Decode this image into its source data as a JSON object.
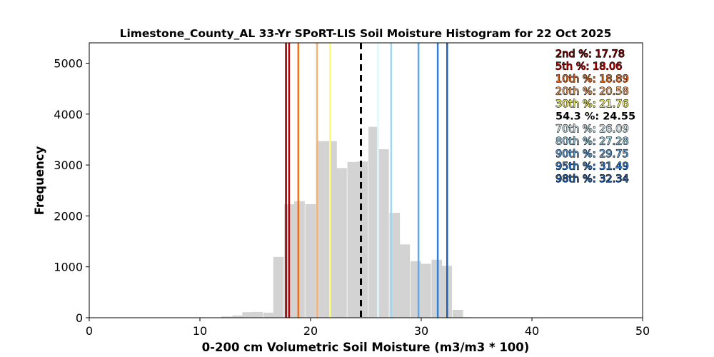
{
  "chart_data": {
    "type": "bar",
    "title": "Limestone_County_AL 33-Yr SPoRT-LIS Soil Moisture Histogram for 22 Oct 2025",
    "xlabel": "0-200 cm Volumetric Soil Moisture (m3/m3 * 100)",
    "ylabel": "Frequency",
    "xlim": [
      0,
      50
    ],
    "ylim": [
      0,
      5400
    ],
    "xticks": [
      "0",
      "10",
      "20",
      "30",
      "40",
      "50"
    ],
    "yticks": [
      "0",
      "1000",
      "2000",
      "3000",
      "4000",
      "5000"
    ],
    "bin_width": 0.95,
    "bar_color": "#d3d3d3",
    "bins": [
      {
        "x": 12.4,
        "y": 25
      },
      {
        "x": 13.4,
        "y": 45
      },
      {
        "x": 14.3,
        "y": 110
      },
      {
        "x": 15.2,
        "y": 115
      },
      {
        "x": 16.2,
        "y": 100
      },
      {
        "x": 17.1,
        "y": 1195
      },
      {
        "x": 18.1,
        "y": 2230
      },
      {
        "x": 19.0,
        "y": 2290
      },
      {
        "x": 20.0,
        "y": 2230
      },
      {
        "x": 21.0,
        "y": 3470
      },
      {
        "x": 21.9,
        "y": 3470
      },
      {
        "x": 22.8,
        "y": 2940
      },
      {
        "x": 23.8,
        "y": 3060
      },
      {
        "x": 24.7,
        "y": 3070
      },
      {
        "x": 25.7,
        "y": 3750
      },
      {
        "x": 26.6,
        "y": 3310
      },
      {
        "x": 27.6,
        "y": 2060
      },
      {
        "x": 28.5,
        "y": 1440
      },
      {
        "x": 29.5,
        "y": 1110
      },
      {
        "x": 30.4,
        "y": 1060
      },
      {
        "x": 31.4,
        "y": 1140
      },
      {
        "x": 32.3,
        "y": 1020
      },
      {
        "x": 33.3,
        "y": 155
      },
      {
        "x": 34.2,
        "y": 10
      }
    ],
    "percentile_lines": [
      {
        "label": "2nd %",
        "value": 17.78,
        "text": "17.78",
        "color": "#800000",
        "style": "solid"
      },
      {
        "label": "5th %",
        "value": 18.06,
        "text": "18.06",
        "color": "#c00000",
        "style": "solid"
      },
      {
        "label": "10th %",
        "value": 18.89,
        "text": "18.89",
        "color": "#f07020",
        "style": "solid"
      },
      {
        "label": "20th %",
        "value": 20.58,
        "text": "20.58",
        "color": "#f9b070",
        "style": "solid"
      },
      {
        "label": "30th %",
        "value": 21.76,
        "text": "21.76",
        "color": "#ffff66",
        "style": "solid"
      },
      {
        "label": "54.3 %",
        "value": 24.55,
        "text": "24.55",
        "color": "#000000",
        "style": "dashed"
      },
      {
        "label": "70th %",
        "value": 26.09,
        "text": "26.09",
        "color": "#e0f8ff",
        "style": "solid"
      },
      {
        "label": "80th %",
        "value": 27.28,
        "text": "27.28",
        "color": "#a0d8f0",
        "style": "solid"
      },
      {
        "label": "90th %",
        "value": 29.75,
        "text": "29.75",
        "color": "#60a8e8",
        "style": "solid"
      },
      {
        "label": "95th %",
        "value": 31.49,
        "text": "31.49",
        "color": "#3080d8",
        "style": "solid"
      },
      {
        "label": "98th %",
        "value": 32.34,
        "text": "32.34",
        "color": "#2060b0",
        "style": "solid"
      }
    ],
    "legend_placement": "top-right",
    "grid": false
  }
}
